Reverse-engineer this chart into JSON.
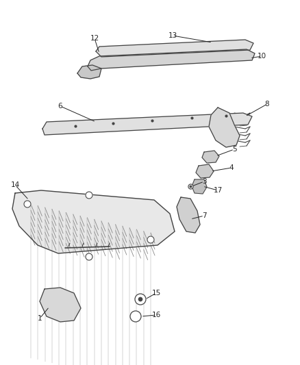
{
  "background_color": "#ffffff",
  "fig_width": 4.38,
  "fig_height": 5.33,
  "dpi": 100,
  "line_color": "#444444",
  "label_fontsize": 7.5
}
